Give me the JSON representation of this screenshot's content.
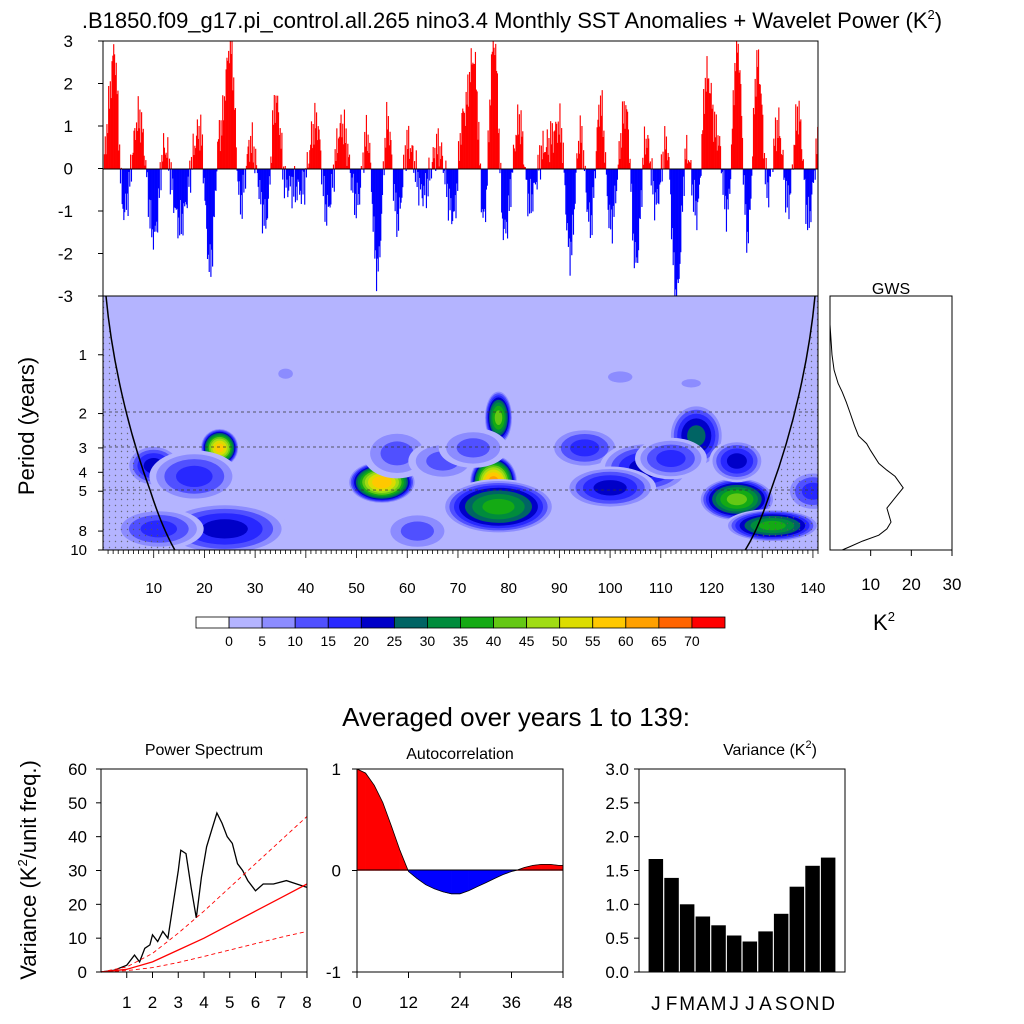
{
  "title_main": ".B1850.f09_g17.pi_control.all.265 nino3.4 Monthly SST Anomalies + Wavelet Power (K",
  "title_main_sup": "2",
  "title_main_close": ")",
  "gws_title": "GWS",
  "gws_unit": "K",
  "gws_unit_sup": "2",
  "section_title": "Averaged over years 1 to 139:",
  "colors": {
    "positive": "#ff0000",
    "negative": "#0000ff",
    "bars": "#000000"
  },
  "chart_data": [
    {
      "type": "bar",
      "panel": "anomaly",
      "ylim": [
        -3,
        3
      ],
      "yticks": [
        "3",
        "2",
        "1",
        "0",
        "-1",
        "-2",
        "-3"
      ],
      "xlim": [
        1,
        141
      ],
      "peaks": [
        [
          2,
          2.8
        ],
        [
          4,
          -1.0
        ],
        [
          7,
          1.2
        ],
        [
          10,
          -1.6
        ],
        [
          12,
          0.5
        ],
        [
          15,
          -1.3
        ],
        [
          19,
          0.9
        ],
        [
          21,
          -2.3
        ],
        [
          23,
          0.9
        ],
        [
          25,
          2.9
        ],
        [
          27,
          -0.8
        ],
        [
          29,
          0.6
        ],
        [
          32,
          -1.2
        ],
        [
          34,
          1.6
        ],
        [
          36,
          -0.4
        ],
        [
          39,
          -0.5
        ],
        [
          42,
          1.1
        ],
        [
          44,
          -1.0
        ],
        [
          47,
          1.0
        ],
        [
          50,
          -0.8
        ],
        [
          52,
          0.8
        ],
        [
          54,
          -2.4
        ],
        [
          56,
          1.1
        ],
        [
          58,
          -1.2
        ],
        [
          60,
          0.6
        ],
        [
          63,
          -0.6
        ],
        [
          66,
          0.5
        ],
        [
          69,
          -1.1
        ],
        [
          71,
          1.3
        ],
        [
          73,
          2.6
        ],
        [
          75,
          -1.2
        ],
        [
          77,
          3.0
        ],
        [
          79,
          -1.5
        ],
        [
          82,
          1.1
        ],
        [
          84,
          -0.8
        ],
        [
          87,
          0.5
        ],
        [
          90,
          1.0
        ],
        [
          92,
          -2.0
        ],
        [
          94,
          0.8
        ],
        [
          96,
          -1.3
        ],
        [
          98,
          1.5
        ],
        [
          100,
          -1.3
        ],
        [
          103,
          1.4
        ],
        [
          105,
          -2.2
        ],
        [
          107,
          0.7
        ],
        [
          109,
          -0.8
        ],
        [
          111,
          0.6
        ],
        [
          113,
          -3.0
        ],
        [
          115,
          0.4
        ],
        [
          117,
          -1.0
        ],
        [
          119,
          2.2
        ],
        [
          121,
          0.8
        ],
        [
          123,
          -1.0
        ],
        [
          125,
          2.9
        ],
        [
          127,
          -1.6
        ],
        [
          129,
          2.5
        ],
        [
          131,
          -0.5
        ],
        [
          133,
          1.0
        ],
        [
          135,
          -0.8
        ],
        [
          137,
          1.3
        ],
        [
          139,
          -1.2
        ],
        [
          141,
          0.6
        ]
      ]
    },
    {
      "type": "heatmap",
      "panel": "wavelet_power",
      "ylabel": "Period (years)",
      "yticks": [
        "1",
        "2",
        "3",
        "4",
        "5",
        "8",
        "10"
      ],
      "xticks": [
        "10",
        "20",
        "30",
        "40",
        "50",
        "60",
        "70",
        "80",
        "90",
        "100",
        "110",
        "120",
        "130",
        "140"
      ],
      "colorbar_labels": [
        "0",
        "5",
        "10",
        "15",
        "20",
        "25",
        "30",
        "35",
        "40",
        "45",
        "50",
        "55",
        "60",
        "65",
        "70"
      ],
      "colorbar_colors": [
        "#ffffff",
        "#b4b4ff",
        "#8c8cff",
        "#5050ff",
        "#2828ff",
        "#0000c8",
        "#006464",
        "#008c3c",
        "#14aa14",
        "#64c814",
        "#a0dc14",
        "#dcdc00",
        "#ffc800",
        "#ffa000",
        "#ff6400",
        "#ff0000"
      ],
      "blobs": [
        [
          23,
          3.0,
          4,
          0.35,
          60
        ],
        [
          10,
          3.7,
          6,
          0.4,
          25
        ],
        [
          18,
          4.2,
          10,
          0.5,
          20
        ],
        [
          24,
          7.8,
          14,
          0.5,
          25
        ],
        [
          11,
          7.8,
          10,
          0.4,
          20
        ],
        [
          55,
          4.5,
          7,
          0.38,
          62
        ],
        [
          58,
          3.2,
          8,
          0.5,
          15
        ],
        [
          67,
          3.5,
          8,
          0.4,
          15
        ],
        [
          77,
          4.5,
          5,
          0.5,
          65
        ],
        [
          78,
          2.1,
          3,
          0.5,
          45
        ],
        [
          78,
          6.0,
          12,
          0.5,
          40
        ],
        [
          73,
          3.0,
          8,
          0.4,
          15
        ],
        [
          62,
          8.0,
          8,
          0.4,
          15
        ],
        [
          95,
          3.0,
          8,
          0.4,
          20
        ],
        [
          107,
          3.8,
          10,
          0.5,
          25
        ],
        [
          100,
          4.8,
          10,
          0.4,
          25
        ],
        [
          117,
          2.6,
          6,
          0.6,
          30
        ],
        [
          112,
          3.4,
          8,
          0.4,
          20
        ],
        [
          125,
          5.5,
          8,
          0.4,
          45
        ],
        [
          132,
          7.5,
          10,
          0.3,
          40
        ],
        [
          125,
          3.5,
          6,
          0.4,
          25
        ],
        [
          140,
          5.0,
          6,
          0.4,
          20
        ],
        [
          36,
          1.25,
          3,
          0.18,
          10
        ],
        [
          102,
          1.3,
          5,
          0.2,
          10
        ],
        [
          116,
          1.4,
          4,
          0.15,
          10
        ]
      ]
    },
    {
      "type": "line",
      "panel": "global_wavelet_spectrum",
      "title": "GWS",
      "xticks": [
        "10",
        "20",
        "30"
      ],
      "xlim": [
        0,
        30
      ],
      "points": [
        [
          0,
          0.7
        ],
        [
          0.5,
          1.0
        ],
        [
          1,
          1.2
        ],
        [
          2,
          1.4
        ],
        [
          3,
          1.55
        ],
        [
          4,
          1.75
        ],
        [
          5,
          2.0
        ],
        [
          6,
          2.3
        ],
        [
          7,
          2.6
        ],
        [
          9,
          2.85
        ],
        [
          10,
          3.1
        ],
        [
          12,
          3.6
        ],
        [
          14,
          3.9
        ],
        [
          16,
          4.2
        ],
        [
          18,
          4.8
        ],
        [
          16,
          5.4
        ],
        [
          14,
          6.1
        ],
        [
          15,
          7.2
        ],
        [
          14,
          7.8
        ],
        [
          12,
          8.4
        ],
        [
          8,
          9.0
        ],
        [
          5,
          9.6
        ],
        [
          3,
          10.0
        ]
      ]
    },
    {
      "type": "line",
      "panel": "power_spectrum",
      "title": "Power Spectrum",
      "ylabel": "Variance (K",
      "ylabel_sup": "2",
      "ylabel_tail": "/unit freq.)",
      "xlim": [
        0,
        8
      ],
      "ylim": [
        0,
        60
      ],
      "xticks": [
        "1",
        "2",
        "3",
        "4",
        "5",
        "6",
        "7",
        "8"
      ],
      "yticks": [
        "0",
        "10",
        "20",
        "30",
        "40",
        "50",
        "60"
      ],
      "series": [
        {
          "color": "#000000",
          "dashed": false,
          "values": [
            [
              0,
              0
            ],
            [
              0.5,
              0.5
            ],
            [
              1,
              2
            ],
            [
              1.3,
              5
            ],
            [
              1.5,
              3
            ],
            [
              1.7,
              7
            ],
            [
              1.9,
              8
            ],
            [
              2.0,
              11
            ],
            [
              2.2,
              9
            ],
            [
              2.4,
              12
            ],
            [
              2.6,
              10
            ],
            [
              2.8,
              20
            ],
            [
              3.0,
              30
            ],
            [
              3.1,
              36
            ],
            [
              3.3,
              35
            ],
            [
              3.5,
              25
            ],
            [
              3.7,
              16
            ],
            [
              3.9,
              28
            ],
            [
              4.1,
              37
            ],
            [
              4.3,
              42
            ],
            [
              4.5,
              47
            ],
            [
              4.7,
              44
            ],
            [
              4.9,
              40
            ],
            [
              5.1,
              38
            ],
            [
              5.3,
              32
            ],
            [
              5.5,
              30
            ],
            [
              5.7,
              27
            ],
            [
              6.0,
              24
            ],
            [
              6.3,
              26
            ],
            [
              6.7,
              26
            ],
            [
              7.2,
              27
            ],
            [
              7.6,
              26
            ],
            [
              8,
              25
            ]
          ]
        },
        {
          "color": "#ff0000",
          "dashed": false,
          "values": [
            [
              0,
              0
            ],
            [
              1,
              0.8
            ],
            [
              2,
              3
            ],
            [
              3,
              6.5
            ],
            [
              4,
              10
            ],
            [
              5,
              14
            ],
            [
              6,
              18
            ],
            [
              7,
              22
            ],
            [
              8,
              26
            ]
          ]
        },
        {
          "color": "#ff0000",
          "dashed": true,
          "values": [
            [
              0,
              0
            ],
            [
              1,
              1.5
            ],
            [
              2,
              5.5
            ],
            [
              3,
              11.5
            ],
            [
              4,
              18
            ],
            [
              5,
              25
            ],
            [
              6,
              32
            ],
            [
              7,
              39
            ],
            [
              8,
              46
            ]
          ]
        },
        {
          "color": "#ff0000",
          "dashed": true,
          "values": [
            [
              0,
              0
            ],
            [
              1,
              0.4
            ],
            [
              2,
              1.3
            ],
            [
              3,
              2.8
            ],
            [
              4,
              4.6
            ],
            [
              5,
              6.5
            ],
            [
              6,
              8.4
            ],
            [
              7,
              10.3
            ],
            [
              8,
              12
            ]
          ]
        }
      ]
    },
    {
      "type": "area",
      "panel": "autocorrelation",
      "title": "Autocorrelation",
      "xlim": [
        0,
        48
      ],
      "ylim": [
        -1,
        1
      ],
      "xticks": [
        "0",
        "12",
        "24",
        "36",
        "48"
      ],
      "yticks": [
        "1",
        "0",
        "-1"
      ],
      "values": [
        [
          0,
          1
        ],
        [
          2,
          0.96
        ],
        [
          4,
          0.84
        ],
        [
          6,
          0.67
        ],
        [
          8,
          0.44
        ],
        [
          10,
          0.2
        ],
        [
          12,
          -0.01
        ],
        [
          14,
          -0.08
        ],
        [
          16,
          -0.14
        ],
        [
          18,
          -0.18
        ],
        [
          20,
          -0.21
        ],
        [
          22,
          -0.23
        ],
        [
          24,
          -0.23
        ],
        [
          26,
          -0.2
        ],
        [
          28,
          -0.16
        ],
        [
          30,
          -0.12
        ],
        [
          32,
          -0.08
        ],
        [
          34,
          -0.04
        ],
        [
          36,
          -0.01
        ],
        [
          37,
          0.0
        ],
        [
          39,
          0.03
        ],
        [
          41,
          0.05
        ],
        [
          43,
          0.06
        ],
        [
          45,
          0.06
        ],
        [
          47,
          0.05
        ],
        [
          48,
          0.05
        ]
      ]
    },
    {
      "type": "bar",
      "panel": "monthly_variance",
      "title": "Variance (K",
      "title_sup": "2",
      "title_tail": ")",
      "ylim": [
        0,
        3
      ],
      "yticks": [
        "3.0",
        "2.5",
        "2.0",
        "1.5",
        "1.0",
        "0.5",
        "0.0"
      ],
      "categories": [
        "J",
        "F",
        "M",
        "A",
        "M",
        "J",
        "J",
        "A",
        "S",
        "O",
        "N",
        "D"
      ],
      "values": [
        1.67,
        1.39,
        1.0,
        0.82,
        0.69,
        0.54,
        0.45,
        0.6,
        0.86,
        1.26,
        1.57,
        1.69
      ]
    }
  ]
}
